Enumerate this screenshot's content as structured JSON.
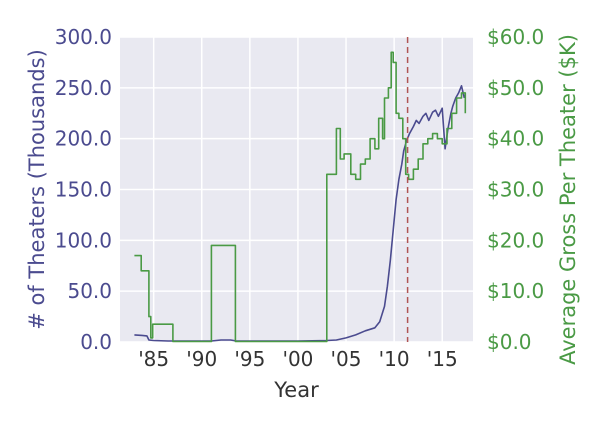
{
  "chart_data": {
    "type": "line",
    "xlabel": "Year",
    "x_ticks": [
      1985,
      1990,
      1995,
      2000,
      2005,
      2010,
      2015
    ],
    "x_tick_labels": [
      "'85",
      "'90",
      "'95",
      "'00",
      "'05",
      "'10",
      "'15"
    ],
    "xlim": [
      1981.5,
      2018.2
    ],
    "grid": true,
    "background_color": "#e9e9f1",
    "left_axis": {
      "label": "# of Theaters (Thousands)",
      "ylim": [
        0,
        300
      ],
      "ticks": [
        0,
        50,
        100,
        150,
        200,
        250,
        300
      ],
      "tick_labels": [
        "0.0",
        "50.0",
        "100.0",
        "150.0",
        "200.0",
        "250.0",
        "300.0"
      ],
      "color": "#4b4b8f"
    },
    "right_axis": {
      "label": "Average Gross Per Theater ($K)",
      "ylim": [
        0,
        60
      ],
      "ticks": [
        0,
        10,
        20,
        30,
        40,
        50,
        60
      ],
      "tick_labels": [
        "$0.0",
        "$10.0",
        "$20.0",
        "$30.0",
        "$40.0",
        "$50.0",
        "$60.0"
      ],
      "color": "#4a9a45"
    },
    "series": [
      {
        "axis": "left",
        "color": "#4b4b8f",
        "x": [
          1983.0,
          1983.8,
          1984.3,
          1984.5,
          1985.0,
          1986.5,
          1988.0,
          1990.0,
          1991.0,
          1992.0,
          1993.0,
          1993.6,
          1995.0,
          2000.0,
          2003.0,
          2004.0,
          2005.0,
          2006.0,
          2007.0,
          2008.0,
          2008.5,
          2009.0,
          2009.3,
          2009.6,
          2009.9,
          2010.2,
          2010.5,
          2010.8,
          2011.0,
          2011.3,
          2011.6,
          2012.0,
          2012.3,
          2012.6,
          2013.0,
          2013.3,
          2013.6,
          2014.0,
          2014.3,
          2014.6,
          2015.0,
          2015.3,
          2015.6,
          2015.9,
          2016.1,
          2016.4,
          2016.7,
          2017.0,
          2017.3
        ],
        "y": [
          7,
          6.5,
          6,
          2,
          1.5,
          1,
          1,
          1,
          1,
          2,
          2,
          1,
          1,
          1,
          1.5,
          2,
          4,
          7,
          11,
          14,
          20,
          35,
          55,
          80,
          110,
          140,
          160,
          175,
          188,
          198,
          205,
          212,
          218,
          215,
          222,
          225,
          218,
          226,
          228,
          222,
          230,
          190,
          210,
          225,
          232,
          240,
          245,
          252,
          240
        ]
      },
      {
        "axis": "right",
        "color": "#4a9a45",
        "step": true,
        "x": [
          1983.0,
          1983.7,
          1984.5,
          1984.7,
          1984.9,
          1987.0,
          1990.0,
          1991.0,
          1993.5,
          2003.0,
          2004.0,
          2004.4,
          2004.8,
          2005.5,
          2006.0,
          2006.5,
          2007.0,
          2007.5,
          2008.0,
          2008.4,
          2008.8,
          2009.0,
          2009.4,
          2009.7,
          2009.9,
          2010.2,
          2010.5,
          2010.9,
          2011.2,
          2011.5,
          2012.0,
          2012.5,
          2013.0,
          2013.5,
          2014.0,
          2014.5,
          2015.0,
          2015.5,
          2016.0,
          2016.5,
          2017.0,
          2017.4
        ],
        "y": [
          17,
          14,
          5,
          0.8,
          3.5,
          0.1,
          0.1,
          19,
          0.1,
          33,
          42,
          36,
          37,
          33,
          32,
          35,
          36,
          40,
          38,
          44,
          40,
          48,
          50,
          57,
          55,
          45,
          44,
          40,
          33,
          32,
          34,
          36,
          39,
          40,
          41,
          40,
          39,
          42,
          45,
          48,
          49,
          45
        ]
      }
    ],
    "vline": {
      "x": 2011.4,
      "color": "#b05555",
      "style": "dashed"
    }
  }
}
